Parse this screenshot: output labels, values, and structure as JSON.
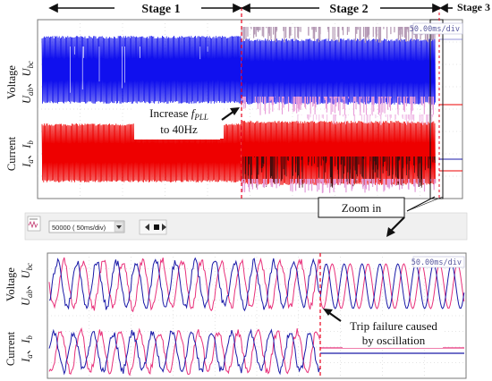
{
  "chart_data": [
    {
      "type": "line",
      "panel": "overview",
      "stages": [
        {
          "label": "Stage 1",
          "start": 0,
          "end": 10
        },
        {
          "label": "Stage 2",
          "start": 10,
          "end": 20
        },
        {
          "label": "Stage 3",
          "start": 20,
          "end": 20.4
        }
      ],
      "timebase": "50.00ms/div",
      "divisions": 10,
      "ylabels": {
        "voltage": [
          "Voltage",
          "U",
          "ab",
          "、",
          "U",
          "bc"
        ],
        "current": [
          "Current",
          "I",
          "a",
          "、",
          "I",
          "b"
        ]
      },
      "annotations": {
        "increase": [
          "Increase ",
          "f",
          "PLL",
          "to 40Hz"
        ],
        "zoom": "Zoom in"
      },
      "series": [
        {
          "name": "U_ab / U_bc",
          "color": "#1010ee",
          "amplitude_divs": 1.5
        },
        {
          "name": "I_a / I_b",
          "color": "#ee0000",
          "amplitude_divs": 1.3
        }
      ]
    },
    {
      "type": "line",
      "panel": "zoom",
      "timebase": "50.00ms/div",
      "ylabels": {
        "voltage": [
          "Voltage",
          "U",
          "ab",
          "、",
          "U",
          "bc"
        ],
        "current": [
          "Current",
          "I",
          "a",
          "、",
          "I",
          "b"
        ]
      },
      "annotations": {
        "trip": [
          "Trip failure caused",
          "by oscillation"
        ]
      },
      "series": [
        {
          "name": "U_ab",
          "color": "#e8307a"
        },
        {
          "name": "U_bc",
          "color": "#1a1aa8"
        },
        {
          "name": "I_a",
          "color": "#e8307a"
        },
        {
          "name": "I_b",
          "color": "#1a1aa8"
        }
      ]
    }
  ],
  "toolbar": {
    "timebase_value": "50000",
    "timebase_unit": "( 50ms/div)"
  }
}
